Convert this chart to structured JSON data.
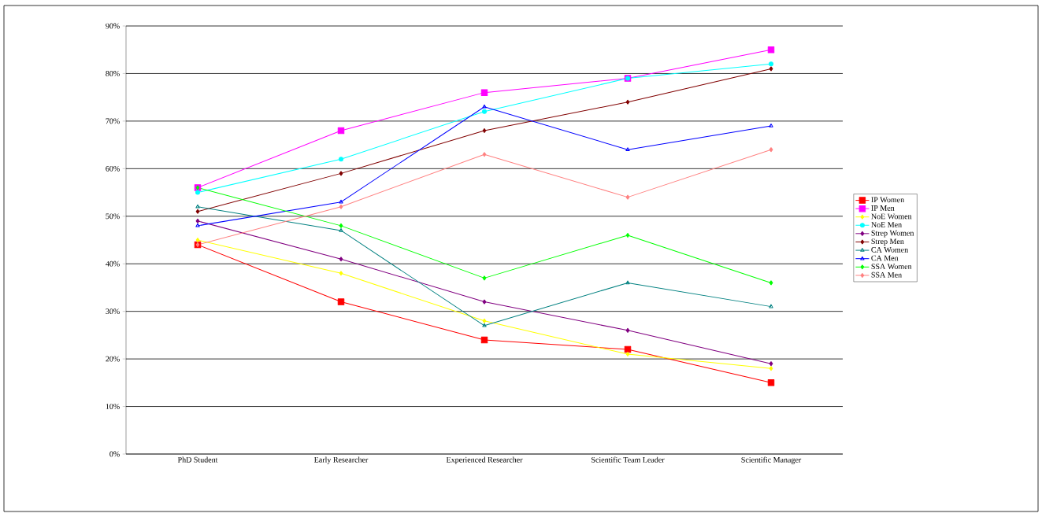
{
  "chart_data": {
    "type": "line",
    "categories": [
      "PhD Student",
      "Early Researcher",
      "Experienced Researcher",
      "Scientific Team Leader",
      "Scientific Manager"
    ],
    "ylim": [
      0,
      90
    ],
    "yticks": [
      {
        "value": 0,
        "label": "0%"
      },
      {
        "value": 10,
        "label": "10%"
      },
      {
        "value": 20,
        "label": "20%"
      },
      {
        "value": 30,
        "label": "30%"
      },
      {
        "value": 40,
        "label": "40%"
      },
      {
        "value": 50,
        "label": "50%"
      },
      {
        "value": 60,
        "label": "60%"
      },
      {
        "value": 70,
        "label": "70%"
      },
      {
        "value": 80,
        "label": "80%"
      },
      {
        "value": 90,
        "label": "90%"
      }
    ],
    "grid": "y",
    "legend": "right",
    "line_style": "solid",
    "series": [
      {
        "name": "IP Women",
        "color": "#ff0000",
        "marker": "square",
        "values": [
          44,
          32,
          24,
          22,
          15
        ]
      },
      {
        "name": "IP Men",
        "color": "#ff00ff",
        "marker": "square",
        "values": [
          56,
          68,
          76,
          79,
          85
        ]
      },
      {
        "name": "NoE Women",
        "color": "#ffff00",
        "marker": "diamond",
        "values": [
          45,
          38,
          28,
          21,
          18
        ]
      },
      {
        "name": "NoE Men",
        "color": "#00ffff",
        "marker": "circle",
        "values": [
          55,
          62,
          72,
          79,
          82
        ]
      },
      {
        "name": "Strep Women",
        "color": "#800080",
        "marker": "diamond",
        "values": [
          49,
          41,
          32,
          26,
          19
        ]
      },
      {
        "name": "Strep Men",
        "color": "#800000",
        "marker": "diamond",
        "values": [
          51,
          59,
          68,
          74,
          81
        ]
      },
      {
        "name": "CA Women",
        "color": "#008080",
        "marker": "triangle",
        "values": [
          52,
          47,
          27,
          36,
          31
        ]
      },
      {
        "name": "CA Men",
        "color": "#0000ff",
        "marker": "triangle",
        "values": [
          48,
          53,
          73,
          64,
          69
        ]
      },
      {
        "name": "SSA Women",
        "color": "#00ff00",
        "marker": "diamond",
        "values": [
          56,
          48,
          37,
          46,
          36
        ]
      },
      {
        "name": "SSA Men",
        "color": "#ff8080",
        "marker": "diamond",
        "values": [
          44,
          52,
          63,
          54,
          64
        ]
      }
    ]
  }
}
